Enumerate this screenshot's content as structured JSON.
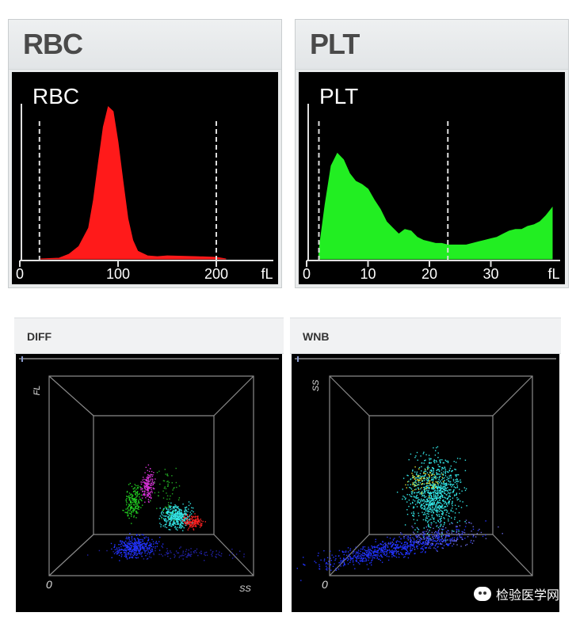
{
  "charts": {
    "rbc": {
      "header_title": "RBC",
      "plot_label": "RBC",
      "x_ticks": [
        "0",
        "100",
        "200"
      ],
      "unit": "fL"
    },
    "plt": {
      "header_title": "PLT",
      "plot_label": "PLT",
      "x_ticks": [
        "0",
        "10",
        "20",
        "30"
      ],
      "unit": "fL"
    },
    "diff": {
      "header_title": "DIFF",
      "y_axis_label": "FL",
      "x_axis_label": "SS",
      "origin_label": "0"
    },
    "wnb": {
      "header_title": "WNB",
      "y_axis_label": "SS",
      "origin_label": "0"
    }
  },
  "watermark": {
    "text": "检验医学网"
  },
  "colors": {
    "rbc_fill": "#ff1a1a",
    "plt_fill": "#22ee22",
    "plot_bg": "#000000",
    "header_text": "#4a4a4a",
    "cyan": "#33e6e6",
    "magenta": "#d633d6",
    "green": "#22cc22",
    "blue": "#2233ff",
    "red": "#ff2222",
    "yellow": "#dddd33"
  },
  "chart_data": [
    {
      "type": "area",
      "title": "RBC",
      "xlabel": "fL",
      "xlim": [
        0,
        250
      ],
      "ylim": [
        0,
        100
      ],
      "x_ticks": [
        0,
        100,
        200
      ],
      "discriminators": [
        20,
        200
      ],
      "x": [
        20,
        40,
        50,
        60,
        70,
        75,
        80,
        85,
        90,
        95,
        100,
        105,
        110,
        115,
        120,
        130,
        140,
        150,
        180,
        200,
        210
      ],
      "values": [
        0,
        0.5,
        3,
        8,
        20,
        38,
        62,
        85,
        98,
        95,
        75,
        50,
        26,
        12,
        5,
        2,
        1.5,
        2,
        1.5,
        1,
        0
      ]
    },
    {
      "type": "area",
      "title": "PLT",
      "xlabel": "fL",
      "xlim": [
        0,
        40
      ],
      "ylim": [
        0,
        100
      ],
      "x_ticks": [
        0,
        10,
        20,
        30
      ],
      "discriminators": [
        2,
        23
      ],
      "x": [
        2,
        3,
        4,
        5,
        6,
        7,
        8,
        9,
        10,
        11,
        12,
        13,
        14,
        15,
        16,
        17,
        18,
        19,
        20,
        21,
        22,
        23,
        24,
        25,
        26,
        27,
        28,
        29,
        30,
        31,
        32,
        33,
        34,
        35,
        36,
        37,
        38,
        39,
        40
      ],
      "values": [
        5,
        35,
        60,
        68,
        64,
        55,
        50,
        48,
        45,
        38,
        32,
        24,
        20,
        16,
        19,
        18,
        14,
        12,
        11,
        10,
        10,
        9,
        9,
        9,
        9,
        10,
        11,
        12,
        13,
        14,
        16,
        18,
        19,
        19,
        21,
        22,
        24,
        28,
        33
      ]
    }
  ]
}
